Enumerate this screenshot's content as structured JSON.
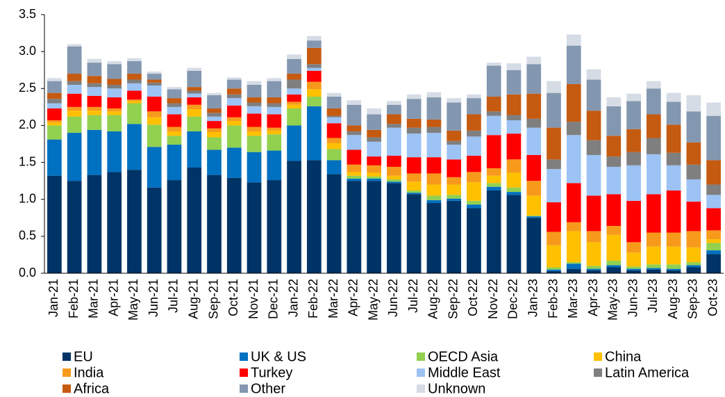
{
  "chart_data": {
    "type": "stacked_bar",
    "categories": [
      "Jan-21",
      "Feb-21",
      "Mar-21",
      "Apr-21",
      "May-21",
      "Jun-21",
      "Jul-21",
      "Aug-21",
      "Sep-21",
      "Oct-21",
      "Nov-21",
      "Dec-21",
      "Jan-22",
      "Feb-22",
      "Mar-22",
      "Apr-22",
      "May-22",
      "Jun-22",
      "Jul-22",
      "Aug-22",
      "Sep-22",
      "Oct-22",
      "Nov-22",
      "Dec-22",
      "Jan-23",
      "Feb-23",
      "Mar-23",
      "Apr-23",
      "May-23",
      "Jun-23",
      "Jul-23",
      "Aug-23",
      "Sep-23",
      "Oct-23"
    ],
    "series": [
      {
        "name": "EU",
        "color": "#003366",
        "values": [
          1.32,
          1.25,
          1.33,
          1.37,
          1.4,
          1.16,
          1.26,
          1.43,
          1.33,
          1.29,
          1.23,
          1.26,
          1.52,
          1.53,
          1.34,
          1.25,
          1.25,
          1.22,
          1.07,
          0.95,
          0.98,
          0.88,
          1.12,
          1.06,
          0.75,
          0.03,
          0.06,
          0.04,
          0.08,
          0.04,
          0.05,
          0.04,
          0.08,
          0.26
        ]
      },
      {
        "name": "UK & US",
        "color": "#0070c0",
        "values": [
          0.49,
          0.65,
          0.61,
          0.55,
          0.62,
          0.55,
          0.48,
          0.49,
          0.34,
          0.41,
          0.41,
          0.4,
          0.48,
          0.73,
          0.19,
          0.03,
          0.03,
          0.02,
          0.02,
          0.04,
          0.03,
          0.05,
          0.05,
          0.04,
          0.02,
          0.02,
          0.07,
          0.02,
          0.03,
          0.02,
          0.02,
          0.02,
          0.03,
          0.05
        ]
      },
      {
        "name": "OECD Asia",
        "color": "#92d050",
        "values": [
          0.19,
          0.22,
          0.2,
          0.22,
          0.28,
          0.3,
          0.12,
          0.2,
          0.17,
          0.3,
          0.22,
          0.22,
          0.23,
          0.13,
          0.15,
          0.04,
          0.03,
          0.03,
          0.03,
          0.06,
          0.05,
          0.05,
          0.05,
          0.06,
          0.01,
          0.03,
          0.02,
          0.04,
          0.06,
          0.03,
          0.05,
          0.06,
          0.04,
          0.1
        ]
      },
      {
        "name": "China",
        "color": "#ffc000",
        "values": [
          0.04,
          0.08,
          0.06,
          0.05,
          0.03,
          0.1,
          0.06,
          0.1,
          0.07,
          0.06,
          0.06,
          0.05,
          0.05,
          0.1,
          0.08,
          0.05,
          0.05,
          0.05,
          0.12,
          0.15,
          0.14,
          0.25,
          0.1,
          0.2,
          0.27,
          0.3,
          0.42,
          0.32,
          0.35,
          0.19,
          0.24,
          0.24,
          0.2,
          0.05
        ]
      },
      {
        "name": "India",
        "color": "#f79a1c",
        "values": [
          0.03,
          0.05,
          0.05,
          0.04,
          0.02,
          0.08,
          0.06,
          0.06,
          0.05,
          0.05,
          0.06,
          0.04,
          0.04,
          0.1,
          0.07,
          0.1,
          0.1,
          0.12,
          0.11,
          0.15,
          0.1,
          0.14,
          0.1,
          0.18,
          0.2,
          0.18,
          0.12,
          0.15,
          0.12,
          0.14,
          0.19,
          0.19,
          0.22,
          0.12
        ]
      },
      {
        "name": "Turkey",
        "color": "#ff0000",
        "values": [
          0.16,
          0.18,
          0.15,
          0.15,
          0.12,
          0.2,
          0.17,
          0.1,
          0.1,
          0.16,
          0.18,
          0.18,
          0.1,
          0.15,
          0.2,
          0.2,
          0.12,
          0.15,
          0.22,
          0.22,
          0.24,
          0.22,
          0.45,
          0.35,
          0.35,
          0.4,
          0.53,
          0.48,
          0.43,
          0.56,
          0.52,
          0.57,
          0.4,
          0.3
        ]
      },
      {
        "name": "Middle East",
        "color": "#9dc3f5",
        "values": [
          0.07,
          0.12,
          0.12,
          0.12,
          0.1,
          0.15,
          0.1,
          0.05,
          0.06,
          0.1,
          0.1,
          0.1,
          0.08,
          0.04,
          0.08,
          0.2,
          0.2,
          0.38,
          0.32,
          0.33,
          0.2,
          0.26,
          0.26,
          0.18,
          0.37,
          0.45,
          0.65,
          0.55,
          0.37,
          0.48,
          0.54,
          0.34,
          0.3,
          0.18
        ]
      },
      {
        "name": "Latin America",
        "color": "#7f7f7f",
        "values": [
          0.06,
          0.05,
          0.05,
          0.05,
          0.05,
          0.04,
          0.05,
          0.04,
          0.05,
          0.05,
          0.05,
          0.05,
          0.12,
          0.05,
          0.02,
          0.05,
          0.06,
          0.05,
          0.08,
          0.08,
          0.05,
          0.08,
          0.06,
          0.07,
          0.12,
          0.13,
          0.18,
          0.2,
          0.14,
          0.18,
          0.22,
          0.17,
          0.2,
          0.14
        ]
      },
      {
        "name": "Africa",
        "color": "#c55a11",
        "values": [
          0.08,
          0.1,
          0.1,
          0.08,
          0.08,
          0.04,
          0.07,
          0.05,
          0.06,
          0.08,
          0.07,
          0.08,
          0.08,
          0.22,
          0.1,
          0.08,
          0.1,
          0.13,
          0.12,
          0.1,
          0.14,
          0.22,
          0.2,
          0.28,
          0.34,
          0.43,
          0.51,
          0.4,
          0.28,
          0.31,
          0.32,
          0.38,
          0.3,
          0.33
        ]
      },
      {
        "name": "Other",
        "color": "#8497b0",
        "values": [
          0.16,
          0.37,
          0.18,
          0.2,
          0.17,
          0.08,
          0.12,
          0.22,
          0.18,
          0.12,
          0.17,
          0.22,
          0.2,
          0.1,
          0.16,
          0.28,
          0.21,
          0.13,
          0.27,
          0.3,
          0.38,
          0.22,
          0.42,
          0.33,
          0.4,
          0.47,
          0.52,
          0.42,
          0.4,
          0.38,
          0.35,
          0.31,
          0.42,
          0.6
        ]
      },
      {
        "name": "Unknown",
        "color": "#d6dce5",
        "values": [
          0.04,
          0.03,
          0.05,
          0.04,
          0.04,
          0.03,
          0.03,
          0.04,
          0.03,
          0.03,
          0.05,
          0.04,
          0.06,
          0.06,
          0.05,
          0.06,
          0.08,
          0.05,
          0.06,
          0.07,
          0.06,
          0.05,
          0.04,
          0.09,
          0.1,
          0.16,
          0.15,
          0.14,
          0.12,
          0.1,
          0.1,
          0.12,
          0.22,
          0.18
        ]
      }
    ],
    "ylim": [
      0,
      3.5
    ],
    "yticks": [
      {
        "value": 0,
        "label": "0.0"
      },
      0.5,
      {
        "value": 1,
        "label": "1.0"
      },
      1.5,
      {
        "value": 2,
        "label": "2.0"
      },
      2.5,
      {
        "value": 3,
        "label": "3.0"
      },
      3.5
    ],
    "grid": false
  }
}
